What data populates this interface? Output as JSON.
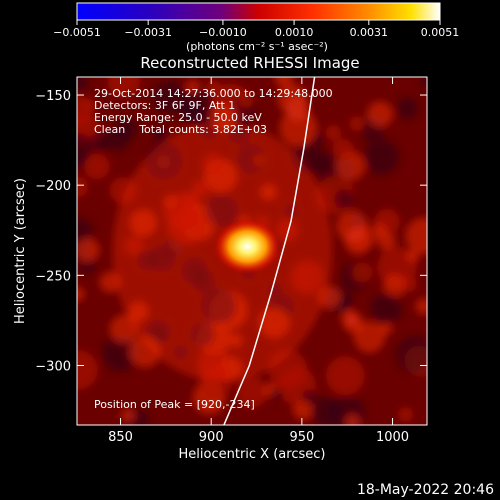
{
  "chart_data": {
    "type": "heatmap",
    "title": "Reconstructed RHESSI Image",
    "xlabel": "Heliocentric X (arcsec)",
    "ylabel": "Heliocentric Y (arcsec)",
    "xlim": [
      826,
      1019
    ],
    "ylim": [
      -333,
      -140
    ],
    "x_ticks": [
      850,
      900,
      950,
      1000
    ],
    "y_ticks": [
      -150,
      -200,
      -250,
      -300
    ],
    "colorbar": {
      "min": -0.0051,
      "max": 0.0051,
      "ticks": [
        -0.0051,
        -0.0031,
        -0.001,
        0.001,
        0.0031,
        0.0051
      ],
      "tick_labels": [
        "−0.0051",
        "−0.0031",
        "−0.0010",
        "0.0010",
        "0.0031",
        "0.0051"
      ],
      "unit_label": "(photons cm⁻² s⁻¹ asec⁻²)",
      "colormap": "blue-purple-red-yellow-white"
    },
    "annotations": [
      "29-Oct-2014 14:27:36.000 to 14:29:48.000",
      "Detectors: 3F 6F 9F, Att 1",
      "Energy Range: 25.0 - 50.0 keV",
      "Clean    Total counts: 3.82E+03"
    ],
    "peak": {
      "x": 920,
      "y": -234,
      "label": "Position of Peak = [920,-234]"
    },
    "limb_curve": [
      [
        907,
        -333
      ],
      [
        921,
        -300
      ],
      [
        933,
        -260
      ],
      [
        944,
        -220
      ],
      [
        951,
        -180
      ],
      [
        957,
        -140
      ]
    ],
    "timestamp": "18-May-2022 20:46"
  }
}
